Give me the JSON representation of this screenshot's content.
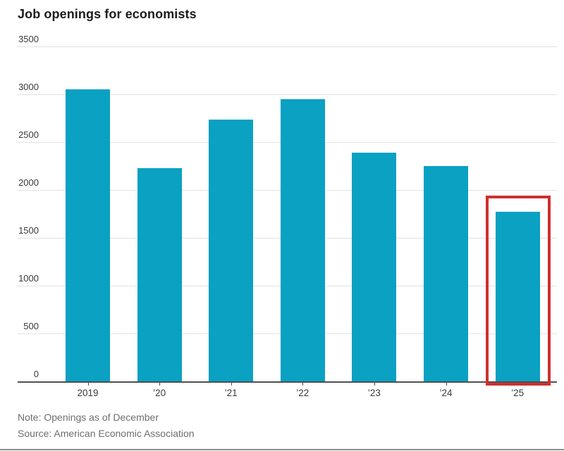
{
  "title": "Job openings for economists",
  "footer": {
    "note": "Note: Openings as of December",
    "source": "Source: American Economic Association"
  },
  "colors": {
    "bar": "#0aa1c2",
    "highlight_outline": "#d02f2f",
    "gridline": "#e2e2e2",
    "axis": "#4f4f4f",
    "title_text": "#1c1c1c",
    "tick_text": "#3b3b3b",
    "footer_text": "#6e6e6e"
  },
  "chart_data": {
    "type": "bar",
    "title": "Job openings for economists",
    "categories": [
      "2019",
      "’20",
      "’21",
      "’22",
      "’23",
      "’24",
      "’25"
    ],
    "values": [
      3050,
      2225,
      2735,
      2950,
      2390,
      2250,
      1770
    ],
    "xlabel": "",
    "ylabel": "",
    "ylim": [
      0,
      3500
    ],
    "ytick_step": 500,
    "ytick_labels": [
      "0",
      "500",
      "1000",
      "1500",
      "2000",
      "2500",
      "3000",
      "3500"
    ],
    "grid": "horizontal",
    "legend": "none",
    "highlight_category": "’25",
    "highlight_style": "red-outline"
  }
}
